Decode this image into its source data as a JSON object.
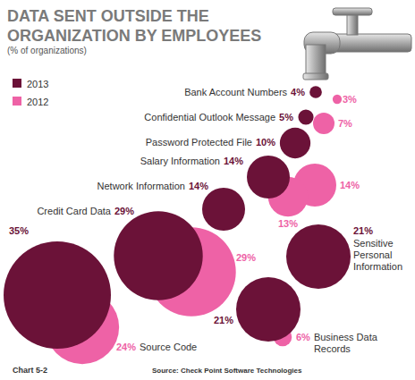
{
  "chart_data": {
    "type": "bubble",
    "title": "DATA SENT OUTSIDE THE ORGANIZATION BY EMPLOYEES",
    "subtitle": "(% of organizations)",
    "annotations": [
      "Chart 5-2",
      "Source: Check Point Software Technologies"
    ],
    "categories": [
      "Bank Account Numbers",
      "Confidential Outlook Message",
      "Password Protected File",
      "Salary Information",
      "Network Information",
      "Credit Card Data",
      "Sensitive Personal Information",
      "Business Data Records",
      "Source Code"
    ],
    "series": [
      {
        "name": "2013",
        "color": "#6b1238",
        "values": [
          4,
          5,
          10,
          14,
          14,
          29,
          21,
          21,
          35
        ],
        "value_labels": [
          "4%",
          "5%",
          "10%",
          "14%",
          "14%",
          "29%",
          "21%",
          "21%",
          "35%"
        ]
      },
      {
        "name": "2012",
        "color": "#ee62a6",
        "values": [
          3,
          7,
          14,
          13,
          null,
          29,
          null,
          6,
          24
        ],
        "value_labels": [
          "3%",
          "7%",
          "14%",
          "13%",
          null,
          "29%",
          null,
          "6%",
          "24%"
        ]
      }
    ],
    "data_labels": true,
    "legend": "top-left"
  }
}
